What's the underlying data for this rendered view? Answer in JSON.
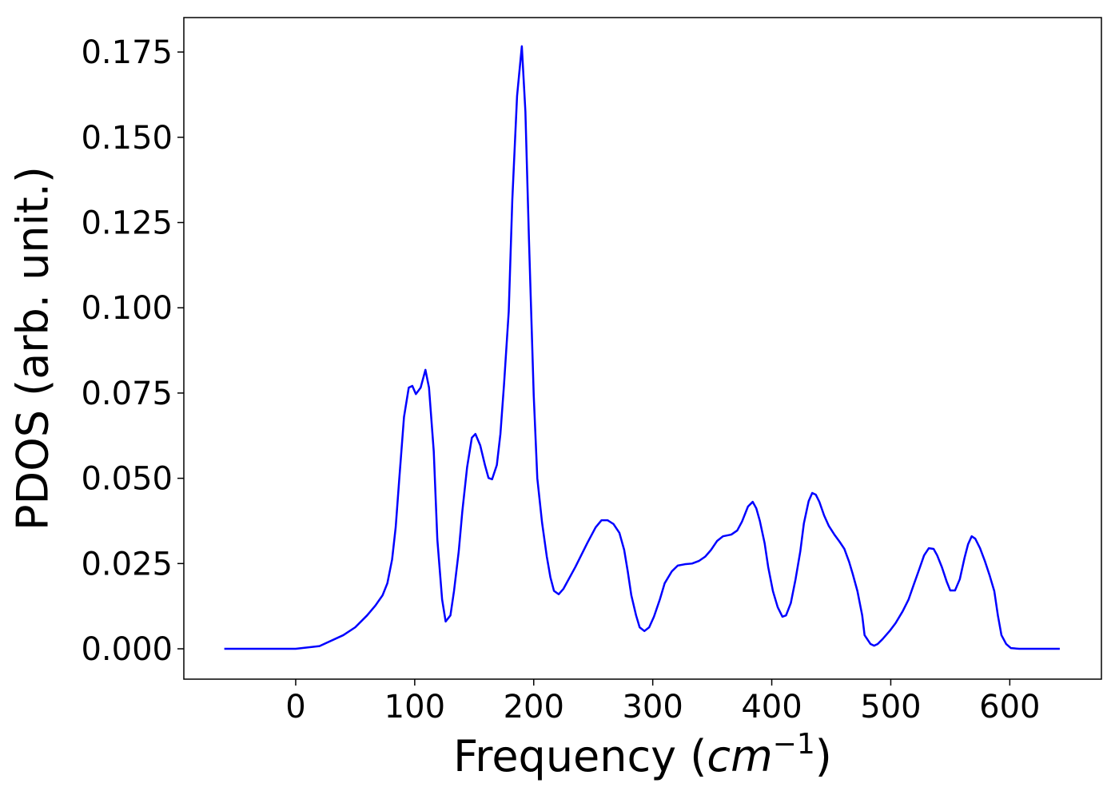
{
  "chart_data": {
    "type": "line",
    "xlabel": [
      "Frequency (",
      "cm",
      "−1",
      ")"
    ],
    "ylabel": "PDOS (arb. unit.)",
    "xlim": [
      -94,
      677
    ],
    "ylim": [
      -0.0089,
      0.1851
    ],
    "xticks": [
      0,
      100,
      200,
      300,
      400,
      500,
      600
    ],
    "yticks": [
      {
        "value": 0,
        "label": "0.000"
      },
      {
        "value": 0.025,
        "label": "0.025"
      },
      {
        "value": 0.05,
        "label": "0.050"
      },
      {
        "value": 0.075,
        "label": "0.075"
      },
      {
        "value": 0.1,
        "label": "0.100"
      },
      {
        "value": 0.125,
        "label": "0.125"
      },
      {
        "value": 0.15,
        "label": "0.150"
      },
      {
        "value": 0.175,
        "label": "0.175"
      }
    ],
    "grid": false,
    "series": [
      {
        "color": "#0000ff",
        "x": [
          -60,
          0,
          20,
          40,
          50,
          60,
          67,
          73,
          77,
          81,
          84,
          87,
          91,
          95,
          98,
          101,
          105,
          109,
          112,
          116,
          119,
          123,
          126,
          130,
          133,
          137,
          140,
          144,
          148,
          151,
          155,
          159,
          162,
          165,
          169,
          172,
          175,
          179,
          182,
          186,
          190,
          193,
          196,
          200,
          203,
          207,
          211,
          214,
          217,
          221,
          225,
          235,
          245,
          252,
          257,
          262,
          267,
          272,
          276,
          279,
          282,
          286,
          289,
          293,
          297,
          301,
          306,
          310,
          316,
          321,
          327,
          333,
          339,
          344,
          349,
          354,
          359,
          366,
          371,
          375,
          380,
          384,
          387,
          390,
          394,
          397,
          401,
          405,
          409,
          412,
          416,
          420,
          424,
          427,
          431,
          434,
          437,
          440,
          444,
          448,
          453,
          457,
          461,
          465,
          468,
          472,
          476,
          478,
          483,
          486,
          489,
          493,
          499,
          504,
          510,
          515,
          519,
          524,
          528,
          532,
          536,
          539,
          543,
          547,
          550,
          554,
          558,
          562,
          565,
          568,
          571,
          575,
          579,
          583,
          587,
          590,
          593,
          597,
          601,
          608,
          642
        ],
        "values": [
          0,
          0,
          0.0008,
          0.004,
          0.0063,
          0.0098,
          0.0127,
          0.0157,
          0.0192,
          0.0262,
          0.0356,
          0.0497,
          0.068,
          0.0766,
          0.0771,
          0.0747,
          0.0766,
          0.0818,
          0.0766,
          0.0579,
          0.0321,
          0.0145,
          0.008,
          0.0098,
          0.0169,
          0.0286,
          0.0403,
          0.0532,
          0.0619,
          0.063,
          0.0597,
          0.0539,
          0.0501,
          0.0497,
          0.0539,
          0.063,
          0.0773,
          0.0989,
          0.1317,
          0.1621,
          0.1767,
          0.1575,
          0.12,
          0.0743,
          0.05,
          0.037,
          0.027,
          0.021,
          0.017,
          0.016,
          0.0176,
          0.024,
          0.031,
          0.0356,
          0.0377,
          0.0377,
          0.0366,
          0.034,
          0.029,
          0.0227,
          0.0157,
          0.0098,
          0.0063,
          0.0052,
          0.0063,
          0.0094,
          0.0145,
          0.0192,
          0.0227,
          0.0244,
          0.0248,
          0.025,
          0.0258,
          0.027,
          0.029,
          0.0316,
          0.033,
          0.0335,
          0.0347,
          0.0373,
          0.0417,
          0.0431,
          0.0412,
          0.0375,
          0.031,
          0.024,
          0.0169,
          0.0122,
          0.0094,
          0.0098,
          0.0134,
          0.0204,
          0.0286,
          0.0368,
          0.0433,
          0.0457,
          0.0452,
          0.0431,
          0.0391,
          0.036,
          0.0333,
          0.0314,
          0.0293,
          0.0255,
          0.022,
          0.0169,
          0.0098,
          0.004,
          0.0014,
          0.0009,
          0.0014,
          0.0028,
          0.0052,
          0.0075,
          0.011,
          0.0145,
          0.0185,
          0.0234,
          0.0274,
          0.0295,
          0.0293,
          0.0274,
          0.0239,
          0.0197,
          0.0171,
          0.0171,
          0.0204,
          0.0267,
          0.0307,
          0.033,
          0.0323,
          0.0295,
          0.0258,
          0.0216,
          0.0169,
          0.0098,
          0.004,
          0.0014,
          0.0002,
          0,
          0
        ]
      }
    ]
  }
}
